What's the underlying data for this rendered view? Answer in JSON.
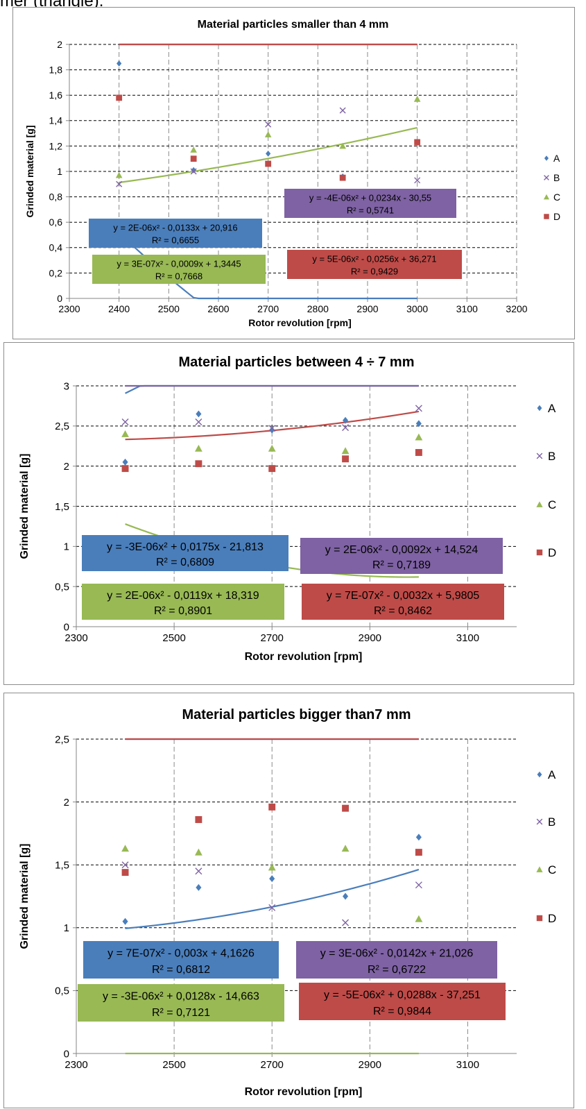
{
  "page": {
    "caption": "mer (triangle)."
  },
  "colors": {
    "A": "#4a7ebb",
    "B": "#7e62a3",
    "C": "#98b954",
    "D": "#be4b48"
  },
  "chart_data": [
    {
      "type": "scatter",
      "title": "Material particles smaller than 4 mm",
      "xlabel": "Rotor revolution [rpm]",
      "ylabel": "Grinded material [g]",
      "xlim": [
        2300,
        3200
      ],
      "ylim": [
        0,
        2
      ],
      "x_ticks": [
        2300,
        2400,
        2500,
        2600,
        2700,
        2800,
        2900,
        3000,
        3100,
        3200
      ],
      "y_ticks": [
        0,
        0.2,
        0.4,
        0.6,
        0.8,
        1,
        1.2,
        1.4,
        1.6,
        1.8,
        2
      ],
      "x_tick_labels": [
        "2300",
        "2400",
        "2500",
        "2600",
        "2700",
        "2800",
        "2900",
        "3000",
        "3100",
        "3200"
      ],
      "y_tick_labels": [
        "0",
        "0,2",
        "0,4",
        "0,6",
        "0,8",
        "1",
        "1,2",
        "1,4",
        "1,6",
        "1,8",
        "2"
      ],
      "grid": true,
      "legend": "right",
      "x": [
        2400,
        2550,
        2700,
        2850,
        3000
      ],
      "series": [
        {
          "name": "A",
          "marker": "diamond",
          "values": [
            1.85,
            1.01,
            1.14,
            0.96,
            0.74
          ],
          "trend": [
            2e-06,
            -0.0133,
            20.916
          ],
          "equation": "y = 2E-06x² - 0,0133x + 20,916",
          "r2": "R² = 0,6655"
        },
        {
          "name": "B",
          "marker": "x",
          "values": [
            0.9,
            1.0,
            1.37,
            1.48,
            0.93
          ],
          "trend": [
            -4e-06,
            0.0234,
            -30.55
          ],
          "equation": "y = -4E-06x² + 0,0234x - 30,55",
          "r2": "R² = 0,5741"
        },
        {
          "name": "C",
          "marker": "triangle",
          "values": [
            0.97,
            1.17,
            1.29,
            1.2,
            1.57
          ],
          "trend": [
            3e-07,
            -0.0009,
            1.3445
          ],
          "equation": "y = 3E-07x² - 0,0009x + 1,3445",
          "r2": "R² = 0,7668"
        },
        {
          "name": "D",
          "marker": "square",
          "values": [
            1.58,
            1.1,
            1.06,
            0.95,
            1.23
          ],
          "trend": [
            5e-06,
            -0.0256,
            36.271
          ],
          "equation": "y = 5E-06x² - 0,0256x + 36,271",
          "r2": "R² = 0,9429"
        }
      ]
    },
    {
      "type": "scatter",
      "title": "Material particles between 4 ÷ 7 mm",
      "xlabel": "Rotor revolution [rpm]",
      "ylabel": "Grinded material [g]",
      "xlim": [
        2300,
        3200
      ],
      "ylim": [
        0,
        3
      ],
      "x_ticks": [
        2300,
        2500,
        2700,
        2900,
        3100
      ],
      "y_ticks": [
        0,
        0.5,
        1,
        1.5,
        2,
        2.5,
        3
      ],
      "x_tick_labels": [
        "2300",
        "2500",
        "2700",
        "2900",
        "3100"
      ],
      "y_tick_labels": [
        "0",
        "0,5",
        "1",
        "1,5",
        "2",
        "2,5",
        "3"
      ],
      "grid": true,
      "legend": "right",
      "x": [
        2400,
        2550,
        2700,
        2850,
        3000
      ],
      "series": [
        {
          "name": "A",
          "marker": "diamond",
          "values": [
            2.05,
            2.65,
            2.45,
            2.57,
            2.53
          ],
          "trend": [
            -3e-06,
            0.0175,
            -21.813
          ],
          "equation": "y = -3E-06x² + 0,0175x - 21,813",
          "r2": "R² = 0,6809"
        },
        {
          "name": "B",
          "marker": "x",
          "values": [
            2.55,
            2.55,
            2.47,
            2.48,
            2.72
          ],
          "trend": [
            2e-06,
            -0.0092,
            14.524
          ],
          "equation": "y = 2E-06x² - 0,0092x + 14,524",
          "r2": "R² = 0,7189"
        },
        {
          "name": "C",
          "marker": "triangle",
          "values": [
            2.4,
            2.22,
            2.22,
            2.19,
            2.36
          ],
          "trend": [
            2e-06,
            -0.0119,
            18.319
          ],
          "equation": "y = 2E-06x² - 0,0119x + 18,319",
          "r2": "R² = 0,8901"
        },
        {
          "name": "D",
          "marker": "square",
          "values": [
            1.97,
            2.03,
            1.97,
            2.09,
            2.17
          ],
          "trend": [
            7e-07,
            -0.0032,
            5.9805
          ],
          "equation": "y = 7E-07x² - 0,0032x + 5,9805",
          "r2": "R² = 0,8462"
        }
      ]
    },
    {
      "type": "scatter",
      "title": "Material particles bigger than7 mm",
      "xlabel": "Rotor revolution [rpm]",
      "ylabel": "Grinded material [g]",
      "xlim": [
        2300,
        3200
      ],
      "ylim": [
        0,
        2.5
      ],
      "x_ticks": [
        2300,
        2500,
        2700,
        2900,
        3100
      ],
      "y_ticks": [
        0,
        0.5,
        1,
        1.5,
        2,
        2.5
      ],
      "x_tick_labels": [
        "2300",
        "2500",
        "2700",
        "2900",
        "3100"
      ],
      "y_tick_labels": [
        "0",
        "0,5",
        "1",
        "1,5",
        "2",
        "2,5"
      ],
      "grid": true,
      "legend": "right",
      "x": [
        2400,
        2550,
        2700,
        2850,
        3000
      ],
      "series": [
        {
          "name": "A",
          "marker": "diamond",
          "values": [
            1.05,
            1.32,
            1.39,
            1.25,
            1.72
          ],
          "trend": [
            7e-07,
            -0.003,
            4.1626
          ],
          "equation": "y = 7E-07x² - 0,003x + 4,1626",
          "r2": "R² = 0,6812"
        },
        {
          "name": "B",
          "marker": "x",
          "values": [
            1.5,
            1.45,
            1.16,
            1.04,
            1.34
          ],
          "trend": [
            3e-06,
            -0.0142,
            21.026
          ],
          "equation": "y = 3E-06x² - 0,0142x + 21,026",
          "r2": "R² = 0,6722"
        },
        {
          "name": "C",
          "marker": "triangle",
          "values": [
            1.63,
            1.6,
            1.48,
            1.63,
            1.07
          ],
          "trend": [
            -3e-06,
            0.0128,
            -14.663
          ],
          "equation": "y = -3E-06x² + 0,0128x - 14,663",
          "r2": "R² = 0,7121"
        },
        {
          "name": "D",
          "marker": "square",
          "values": [
            1.44,
            1.86,
            1.96,
            1.95,
            1.6
          ],
          "trend": [
            -5e-06,
            0.0288,
            -37.251
          ],
          "equation": "y = -5E-06x² + 0,0288x - 37,251",
          "r2": "R² = 0,9844"
        }
      ]
    }
  ]
}
